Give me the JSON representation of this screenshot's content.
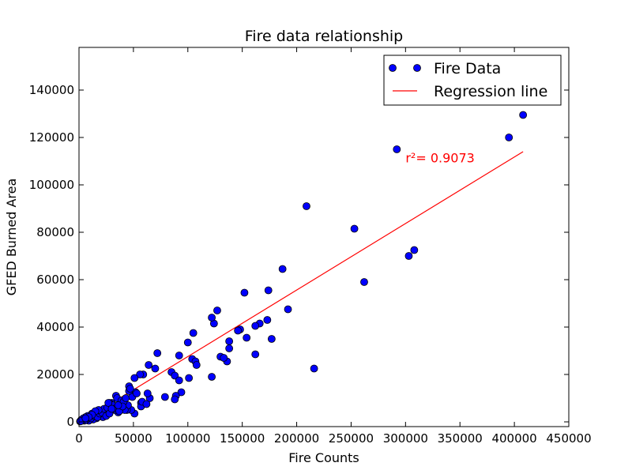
{
  "chart_data": {
    "type": "scatter",
    "title": "Fire data relationship",
    "xlabel": "Fire Counts",
    "ylabel": "GFED Burned Area",
    "xlim": [
      0,
      450000
    ],
    "ylim": [
      -2000,
      158000
    ],
    "xticks": [
      0,
      50000,
      100000,
      150000,
      200000,
      250000,
      300000,
      350000,
      400000,
      450000
    ],
    "yticks": [
      0,
      20000,
      40000,
      60000,
      80000,
      100000,
      120000,
      140000
    ],
    "xtick_labels": [
      "0",
      "50000",
      "100000",
      "150000",
      "200000",
      "250000",
      "300000",
      "350000",
      "400000",
      "450000"
    ],
    "ytick_labels": [
      "0",
      "20000",
      "40000",
      "60000",
      "80000",
      "100000",
      "120000",
      "140000"
    ],
    "grid": false,
    "legend": {
      "placement": "top-right",
      "entries": [
        "Fire Data",
        "Regression line"
      ]
    },
    "annotation": {
      "text": "r²= 0.9073",
      "x": 300000,
      "y": 111500,
      "color": "#ff0000"
    },
    "colors": {
      "points": "#0000ff",
      "point_edge": "#000000",
      "regression": "#ff0000"
    },
    "series": [
      {
        "name": "Fire Data",
        "x": [
          408000,
          395000,
          292000,
          209000,
          253000,
          308000,
          303000,
          262000,
          187000,
          174000,
          192000,
          173000,
          166000,
          177000,
          162000,
          152000,
          154000,
          148000,
          146000,
          127000,
          124000,
          122000,
          130000,
          136000,
          138000,
          138000,
          133000,
          162000,
          122000,
          105000,
          100000,
          92000,
          104000,
          107000,
          108000,
          101000,
          72000,
          70000,
          64000,
          59000,
          56000,
          51000,
          52000,
          46000,
          46000,
          85000,
          88000,
          94000,
          92000,
          89000,
          88000,
          79000,
          65000,
          63000,
          57000,
          57000,
          51000,
          48000,
          44000,
          45000,
          42000,
          38000,
          36000,
          34000,
          33000,
          30000,
          28000,
          27000,
          29000,
          25000,
          24000,
          22000,
          20000,
          18000,
          16000,
          15000,
          13000,
          12000,
          10000,
          9000,
          8000,
          7000,
          6000,
          5000,
          4000,
          3000,
          2000,
          1000,
          1500,
          11000,
          14000,
          17000,
          19000,
          21000,
          23000,
          26000,
          31000,
          35000,
          39000,
          41000,
          43000,
          47000,
          49000,
          53000,
          58000,
          62000,
          25000,
          28000,
          32000,
          37000,
          40000,
          27000,
          30000,
          36000,
          18000,
          15000,
          12000,
          9000,
          6000,
          216000
        ],
        "y": [
          129500,
          120000,
          115000,
          91000,
          81500,
          72500,
          70000,
          59000,
          64500,
          55500,
          47500,
          43000,
          41500,
          35000,
          40500,
          54500,
          35500,
          39000,
          38500,
          47000,
          41500,
          44000,
          27500,
          25500,
          34000,
          31000,
          27000,
          28500,
          19000,
          37500,
          33500,
          28000,
          26500,
          25500,
          24000,
          18500,
          29000,
          22500,
          24000,
          20000,
          20000,
          18500,
          12500,
          15000,
          13000,
          21000,
          19500,
          12500,
          17500,
          11000,
          9500,
          10500,
          10000,
          12000,
          8000,
          6500,
          3500,
          5000,
          5000,
          7000,
          5000,
          6000,
          4000,
          11000,
          5000,
          8000,
          8000,
          4000,
          6000,
          5000,
          2500,
          2000,
          4000,
          3000,
          1500,
          3000,
          1000,
          3500,
          1500,
          500,
          2500,
          1000,
          2000,
          500,
          1500,
          500,
          800,
          200,
          300,
          1500,
          2500,
          2000,
          3500,
          4000,
          5500,
          6000,
          7000,
          10000,
          9000,
          8500,
          10000,
          14000,
          10500,
          12000,
          8500,
          7500,
          2500,
          3500,
          5500,
          4500,
          6500,
          8000,
          5500,
          7000,
          5000,
          4500,
          3000,
          2000,
          1500,
          22500
        ]
      },
      {
        "name": "Regression line",
        "type": "line",
        "x": [
          0,
          408000
        ],
        "y": [
          -500,
          114000
        ]
      }
    ]
  }
}
